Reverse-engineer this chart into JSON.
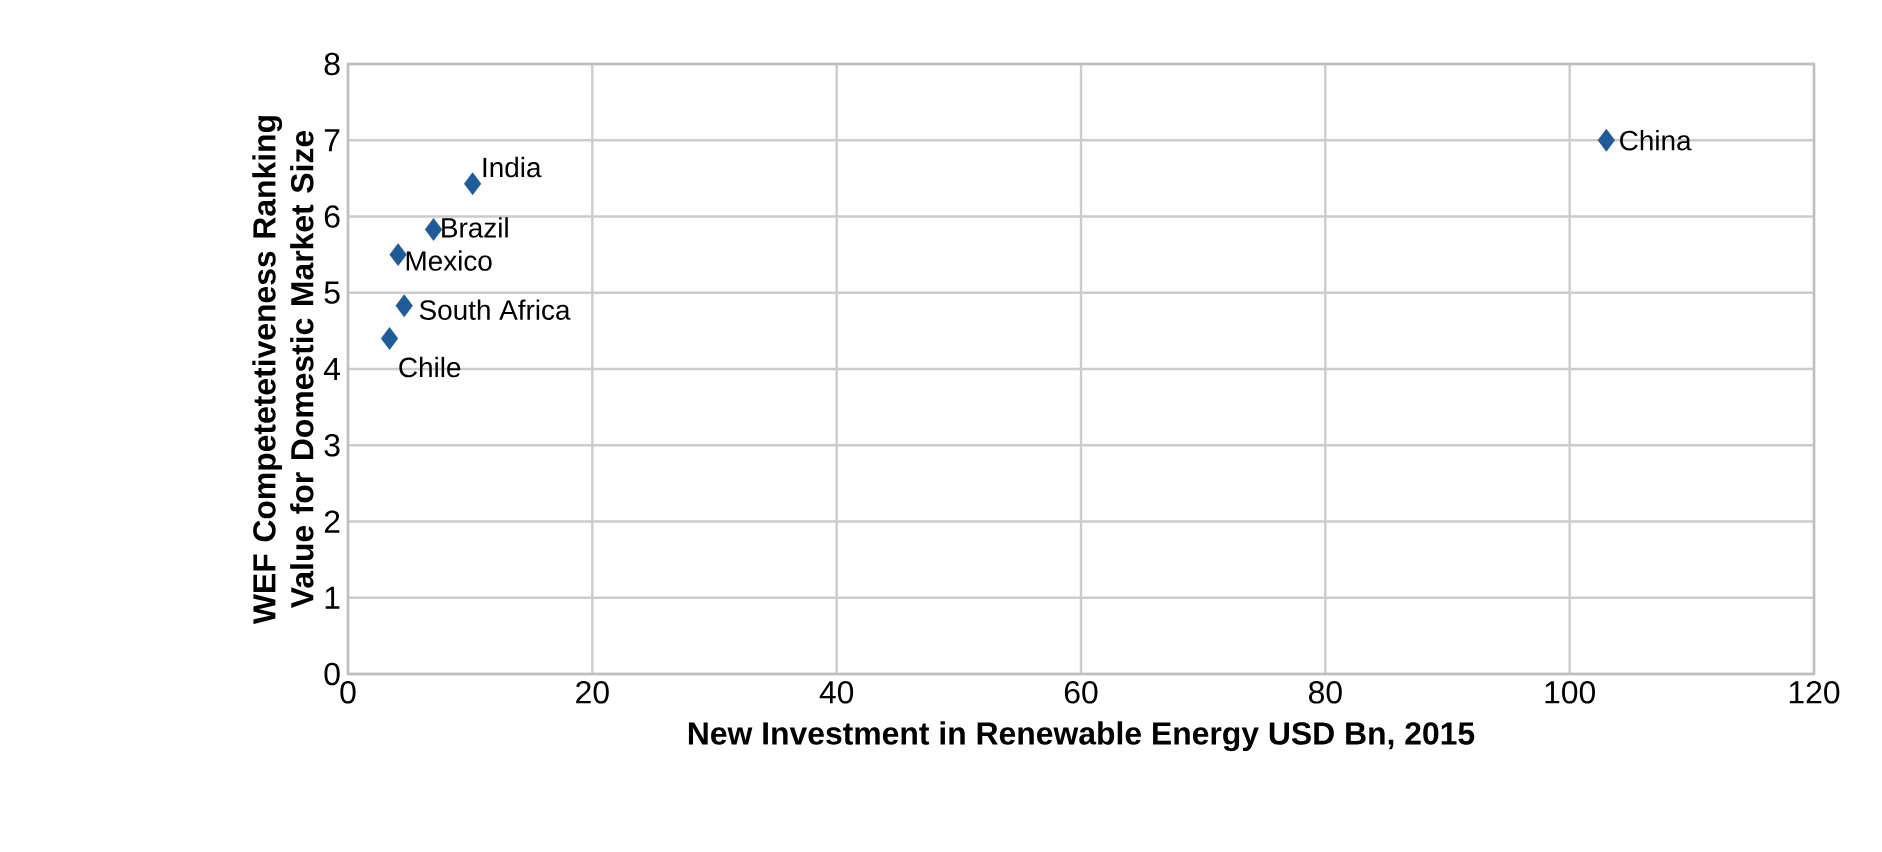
{
  "chart_data": {
    "type": "scatter",
    "xlabel": "New Investment in Renewable Energy USD Bn, 2015",
    "ylabel": "WEF Competetetiveness Ranking Value for Domestic Market Size",
    "x": [
      10.2,
      7.0,
      4.1,
      4.6,
      3.4,
      103
    ],
    "values": [
      6.43,
      5.83,
      5.5,
      4.83,
      4.4,
      7.0
    ],
    "color": "#1f5a99",
    "marker": "diamond",
    "grid": true,
    "xlim": [
      0,
      120
    ],
    "xticks": [
      0,
      20,
      40,
      60,
      80,
      100,
      120
    ],
    "ylim": [
      0,
      8
    ],
    "yticks": [
      0,
      1,
      2,
      3,
      4,
      5,
      6,
      7,
      8
    ],
    "annotations": [
      {
        "text": "India",
        "x": 10.2,
        "y": 6.43
      },
      {
        "text": "Brazil",
        "x": 7.0,
        "y": 5.83
      },
      {
        "text": "Mexico",
        "x": 4.1,
        "y": 5.5
      },
      {
        "text": "South Africa",
        "x": 4.6,
        "y": 4.83
      },
      {
        "text": "Chile",
        "x": 3.4,
        "y": 4.4
      },
      {
        "text": "China",
        "x": 103,
        "y": 7.0
      }
    ]
  }
}
